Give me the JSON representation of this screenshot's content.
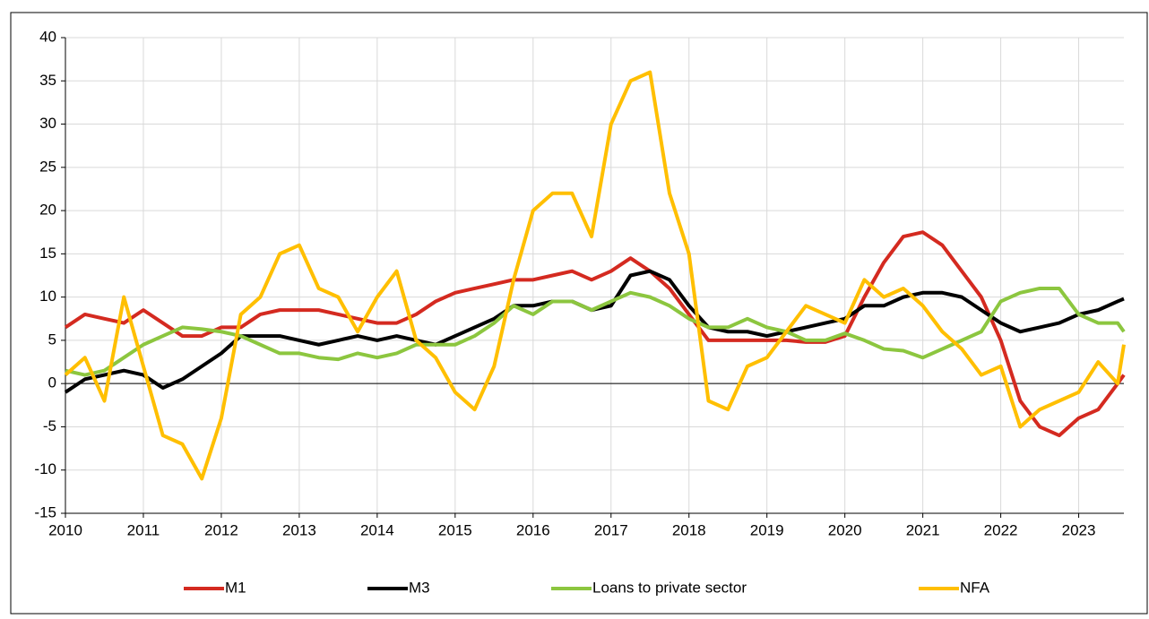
{
  "chart_data": {
    "type": "line",
    "x": [
      2010,
      2010.25,
      2010.5,
      2010.75,
      2011,
      2011.25,
      2011.5,
      2011.75,
      2012,
      2012.25,
      2012.5,
      2012.75,
      2013,
      2013.25,
      2013.5,
      2013.75,
      2014,
      2014.25,
      2014.5,
      2014.75,
      2015,
      2015.25,
      2015.5,
      2015.75,
      2016,
      2016.25,
      2016.5,
      2016.75,
      2017,
      2017.25,
      2017.5,
      2017.75,
      2018,
      2018.25,
      2018.5,
      2018.75,
      2019,
      2019.25,
      2019.5,
      2019.75,
      2020,
      2020.25,
      2020.5,
      2020.75,
      2021,
      2021.25,
      2021.5,
      2021.75,
      2022,
      2022.25,
      2022.5,
      2022.75,
      2023,
      2023.25,
      2023.5,
      2023.58
    ],
    "series": [
      {
        "name": "M1",
        "color": "#d42a20",
        "values": [
          6.5,
          8,
          7.5,
          7,
          8.5,
          7,
          5.5,
          5.5,
          6.5,
          6.5,
          8,
          8.5,
          8.5,
          8.5,
          8,
          7.5,
          7,
          7,
          8,
          9.5,
          10.5,
          11,
          11.5,
          12,
          12,
          12.5,
          13,
          12,
          13,
          14.5,
          13,
          11,
          8,
          5,
          5,
          5,
          5,
          5,
          4.8,
          4.8,
          5.5,
          10,
          14,
          17,
          17.5,
          16,
          13,
          10,
          5,
          -2,
          -5,
          -6,
          -4,
          -3,
          0,
          1
        ]
      },
      {
        "name": "M3",
        "color": "#000000",
        "values": [
          -1,
          0.5,
          1,
          1.5,
          1,
          -0.5,
          0.5,
          2,
          3.5,
          5.5,
          5.5,
          5.5,
          5,
          4.5,
          5,
          5.5,
          5,
          5.5,
          5,
          4.5,
          5.5,
          6.5,
          7.5,
          9,
          9,
          9.5,
          9.5,
          8.5,
          9,
          12.5,
          13,
          12,
          9,
          6.5,
          6,
          6,
          5.5,
          6,
          6.5,
          7,
          7.5,
          9,
          9,
          10,
          10.5,
          10.5,
          10,
          8.5,
          7,
          6,
          6.5,
          7,
          8,
          8.5,
          9.5,
          9.8
        ]
      },
      {
        "name": "Loans to private sector",
        "color": "#8cc63f",
        "values": [
          1.5,
          1,
          1.5,
          3,
          4.5,
          5.5,
          6.5,
          6.3,
          6,
          5.5,
          4.5,
          3.5,
          3.5,
          3,
          2.8,
          3.5,
          3,
          3.5,
          4.5,
          4.5,
          4.5,
          5.5,
          7,
          9,
          8,
          9.5,
          9.5,
          8.5,
          9.5,
          10.5,
          10,
          9,
          7.5,
          6.5,
          6.5,
          7.5,
          6.5,
          6,
          5,
          5,
          5.8,
          5,
          4,
          3.8,
          3,
          4,
          5,
          6,
          9.5,
          10.5,
          11,
          11,
          8,
          7,
          7,
          6
        ]
      },
      {
        "name": "NFA",
        "color": "#ffbf00",
        "values": [
          1,
          3,
          -2,
          10,
          2,
          -6,
          -7,
          -11,
          -4,
          8,
          10,
          15,
          16,
          11,
          10,
          6,
          10,
          13,
          5,
          3,
          -1,
          -3,
          2,
          12,
          20,
          22,
          22,
          17,
          30,
          35,
          36,
          22,
          15,
          -2,
          -3,
          2,
          3,
          6,
          9,
          8,
          7,
          12,
          10,
          11,
          9,
          6,
          4,
          1,
          2,
          -5,
          -3,
          -2,
          -1,
          2.5,
          0,
          4.5
        ]
      }
    ],
    "xlim": [
      2010,
      2023.58
    ],
    "xticks": [
      2010,
      2011,
      2012,
      2013,
      2014,
      2015,
      2016,
      2017,
      2018,
      2019,
      2020,
      2021,
      2022,
      2023
    ],
    "ylim": [
      -15,
      40
    ],
    "yticks": [
      -15,
      -10,
      -5,
      0,
      5,
      10,
      15,
      20,
      25,
      30,
      35,
      40
    ],
    "grid": true
  }
}
